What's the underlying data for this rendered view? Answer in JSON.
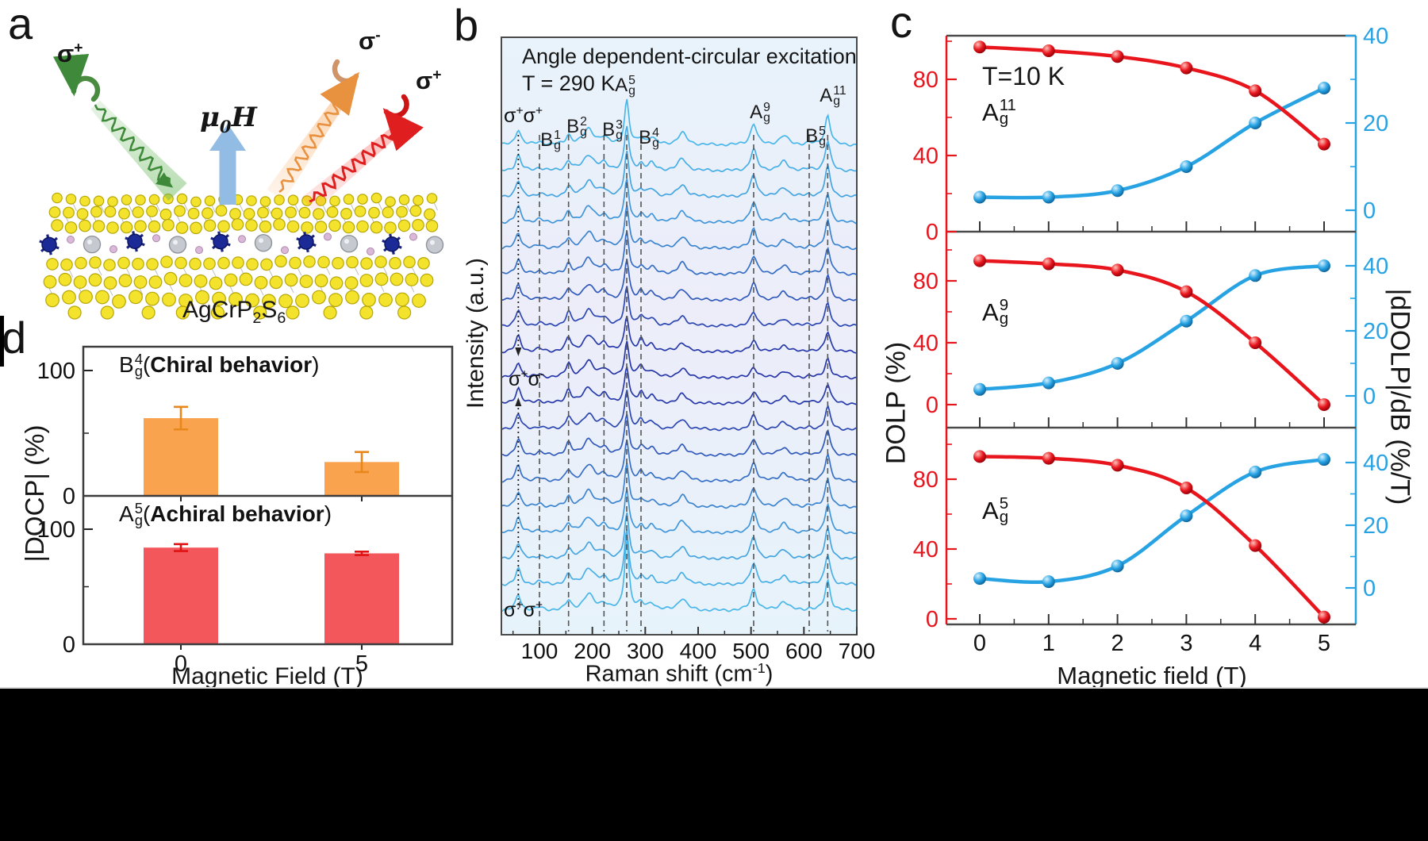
{
  "figure": {
    "panel_labels": {
      "a": "a",
      "b": "b",
      "c": "c",
      "d": "d"
    },
    "colors": {
      "red_series": "#e8151d",
      "blue_series": "#27a3e3",
      "orange_bar": "#f9a34f",
      "salmon_bar": "#f4575b",
      "spectra_light": "#4cc0ee",
      "spectra_dark": "#2736a8",
      "axis_gray": "#4a4a4a",
      "guide": "#555555"
    }
  },
  "panel_a": {
    "sigma_incident": {
      "base": "σ",
      "sup": "+"
    },
    "sigma_scattered_minus": {
      "base": "σ",
      "sup": "-"
    },
    "sigma_scattered_plus": {
      "base": "σ",
      "sup": "+"
    },
    "field_label": {
      "pre": "μ",
      "sub": "0",
      "post": "H"
    },
    "material": {
      "m1": "AgCrP",
      "s1": "2",
      "m2": "S",
      "s2": "6"
    }
  },
  "chart_data": [
    {
      "id": "raman_spectra",
      "type": "line",
      "title": "Angle dependent-circular excitation",
      "subtitle": "T = 290 K",
      "xlabel": {
        "pre": "Raman shift (cm",
        "sup": "-1",
        "post": ")"
      },
      "ylabel": "Intensity (a.u.)",
      "xlim": [
        28,
        703
      ],
      "xticks": [
        100,
        200,
        300,
        400,
        500,
        600,
        700
      ],
      "n_spectra": 19,
      "polarization_labels": {
        "top": [
          [
            "σ",
            "+"
          ],
          [
            "σ",
            "+"
          ]
        ],
        "middle": [
          [
            "σ",
            "+"
          ],
          [
            "σ",
            "-"
          ]
        ],
        "bottom": [
          [
            "σ",
            "+"
          ],
          [
            "σ",
            "+"
          ]
        ]
      },
      "peak_annotations": [
        {
          "base": "B",
          "sup": "1",
          "sub": "g",
          "pos": 100
        },
        {
          "base": "B",
          "sup": "2",
          "sub": "g",
          "pos": 155
        },
        {
          "base": "B",
          "sup": "3",
          "sub": "g",
          "pos": 222
        },
        {
          "base": "A",
          "sup": "5",
          "sub": "g",
          "pos": 265
        },
        {
          "base": "B",
          "sup": "4",
          "sub": "g",
          "pos": 292
        },
        {
          "base": "A",
          "sup": "9",
          "sub": "g",
          "pos": 505
        },
        {
          "base": "B",
          "sup": "5",
          "sub": "g",
          "pos": 610
        },
        {
          "base": "A",
          "sup": "11",
          "sub": "g",
          "pos": 645
        }
      ],
      "dotted_guide_pos": 60,
      "dashed_guide_pos": [
        100,
        155,
        222,
        265,
        292,
        505,
        610,
        645
      ],
      "peak_profile": [
        [
          60,
          0.55,
          6
        ],
        [
          100,
          0.1,
          8
        ],
        [
          155,
          0.33,
          6
        ],
        [
          193,
          0.55,
          12
        ],
        [
          222,
          0.22,
          9
        ],
        [
          265,
          1.55,
          5
        ],
        [
          292,
          0.22,
          6
        ],
        [
          312,
          0.25,
          8
        ],
        [
          370,
          0.42,
          10
        ],
        [
          505,
          0.75,
          7
        ],
        [
          562,
          0.32,
          10
        ],
        [
          610,
          0.06,
          7
        ],
        [
          645,
          1.05,
          6
        ]
      ]
    },
    {
      "id": "dolp_vs_field",
      "type": "line",
      "temperature_label": "T=10 K",
      "xlabel": "Magnetic field (T)",
      "ylabel_left": "DOLP (%)",
      "ylabel_right": "|dDOLP|/dB (%/T)",
      "x": [
        0,
        1,
        2,
        3,
        4,
        5
      ],
      "left_ticks": [
        0,
        40,
        80
      ],
      "right_ticks": [
        0,
        20,
        40
      ],
      "subplots": [
        {
          "mode": {
            "base": "A",
            "sup": "11",
            "sub": "g"
          },
          "dolp": [
            97,
            95,
            92,
            86,
            74,
            46
          ],
          "ddolp_db": [
            3,
            3,
            4.5,
            10,
            20,
            28
          ]
        },
        {
          "mode": {
            "base": "A",
            "sup": "9",
            "sub": "g"
          },
          "dolp": [
            93,
            91,
            87,
            73,
            40,
            0
          ],
          "ddolp_db": [
            2,
            4,
            10,
            23,
            37,
            40
          ]
        },
        {
          "mode": {
            "base": "A",
            "sup": "5",
            "sub": "g"
          },
          "dolp": [
            93,
            92,
            88,
            75,
            42,
            1
          ],
          "ddolp_db": [
            3,
            2,
            7,
            23,
            37,
            41
          ]
        }
      ]
    },
    {
      "id": "docp_bars",
      "type": "bar",
      "xlabel": "Magnetic Field (T)",
      "ylabel": "|DOCP| (%)",
      "categories": [
        "0",
        "5"
      ],
      "yticks": [
        0,
        100
      ],
      "subplots": [
        {
          "mode": {
            "base": "B",
            "sup": "4",
            "sub": "g"
          },
          "behavior_bold": "Chiral behavior",
          "paren_open": "(",
          "paren_close": ")",
          "values": [
            62,
            27
          ],
          "errors": [
            9,
            8
          ],
          "bar_color": "#f9a34f",
          "error_color": "#e8881c"
        },
        {
          "mode": {
            "base": "A",
            "sup": "5",
            "sub": "g"
          },
          "behavior_bold": "Achiral behavior",
          "paren_open": "(",
          "paren_close": ")",
          "values": [
            84,
            79
          ],
          "errors": [
            3,
            1.5
          ],
          "bar_color": "#f4575b",
          "error_color": "#e01414"
        }
      ]
    }
  ]
}
